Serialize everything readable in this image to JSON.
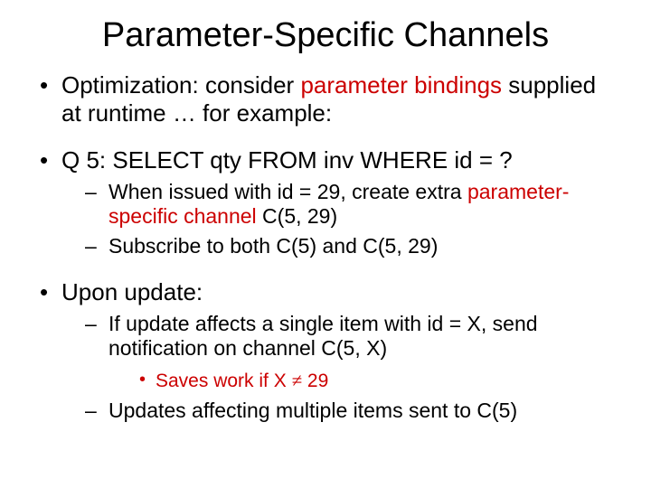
{
  "title": "Parameter-Specific Channels",
  "colors": {
    "text": "#000000",
    "accent": "#cc0000",
    "background": "#ffffff"
  },
  "fonts": {
    "title_size_pt": 38,
    "l1_size_pt": 26,
    "l2_size_pt": 23,
    "l3_size_pt": 21
  },
  "bullets": {
    "b1_pre": "Optimization: consider ",
    "b1_red": "parameter bindings",
    "b1_post": " supplied at runtime … for example:",
    "b2": "Q 5: SELECT qty FROM inv WHERE id = ?",
    "b2_s1_pre": "When issued with id = 29, create extra ",
    "b2_s1_red": "parameter-specific channel",
    "b2_s1_post": " C(5, 29)",
    "b2_s2": "Subscribe to both C(5) and C(5, 29)",
    "b3": "Upon update:",
    "b3_s1": "If update affects a single item with id = X, send notification on channel C(5, X)",
    "b3_s1_t1_pre": "Saves work if X ",
    "b3_s1_t1_ne": "≠",
    "b3_s1_t1_post": " 29",
    "b3_s2": "Updates affecting multiple items sent to C(5)"
  }
}
